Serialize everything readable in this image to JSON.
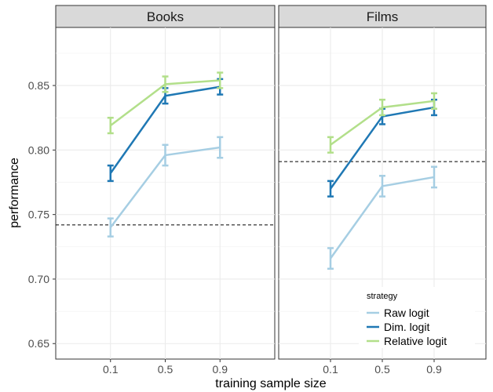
{
  "chart_data": {
    "type": "line",
    "xlabel": "training sample size",
    "ylabel": "performance",
    "x_ticks": [
      "0.1",
      "0.5",
      "0.9"
    ],
    "y_ticks": [
      "0.65",
      "0.70",
      "0.75",
      "0.80",
      "0.85"
    ],
    "ylim": [
      0.638,
      0.895
    ],
    "grid": true,
    "legend": {
      "title": "strategy",
      "position": "bottom-right",
      "entries": [
        {
          "name": "Raw logit",
          "color": "#a6cee3"
        },
        {
          "name": "Dim. logit",
          "color": "#1f78b4"
        },
        {
          "name": "Relative logit",
          "color": "#b2df8a"
        }
      ]
    },
    "panels": [
      {
        "title": "Books",
        "baseline": 0.742,
        "series": [
          {
            "name": "Raw logit",
            "color": "#a6cee3",
            "x": [
              0.1,
              0.5,
              0.9
            ],
            "y": [
              0.74,
              0.796,
              0.802
            ],
            "err": [
              0.007,
              0.008,
              0.008
            ]
          },
          {
            "name": "Dim. logit",
            "color": "#1f78b4",
            "x": [
              0.1,
              0.5,
              0.9
            ],
            "y": [
              0.782,
              0.842,
              0.849
            ],
            "err": [
              0.006,
              0.006,
              0.006
            ]
          },
          {
            "name": "Relative logit",
            "color": "#b2df8a",
            "x": [
              0.1,
              0.5,
              0.9
            ],
            "y": [
              0.819,
              0.851,
              0.854
            ],
            "err": [
              0.006,
              0.006,
              0.006
            ]
          }
        ]
      },
      {
        "title": "Films",
        "baseline": 0.791,
        "series": [
          {
            "name": "Raw logit",
            "color": "#a6cee3",
            "x": [
              0.1,
              0.5,
              0.9
            ],
            "y": [
              0.716,
              0.772,
              0.779
            ],
            "err": [
              0.008,
              0.008,
              0.008
            ]
          },
          {
            "name": "Dim. logit",
            "color": "#1f78b4",
            "x": [
              0.1,
              0.5,
              0.9
            ],
            "y": [
              0.77,
              0.826,
              0.833
            ],
            "err": [
              0.006,
              0.006,
              0.006
            ]
          },
          {
            "name": "Relative logit",
            "color": "#b2df8a",
            "x": [
              0.1,
              0.5,
              0.9
            ],
            "y": [
              0.804,
              0.833,
              0.838
            ],
            "err": [
              0.006,
              0.006,
              0.006
            ]
          }
        ]
      }
    ]
  }
}
